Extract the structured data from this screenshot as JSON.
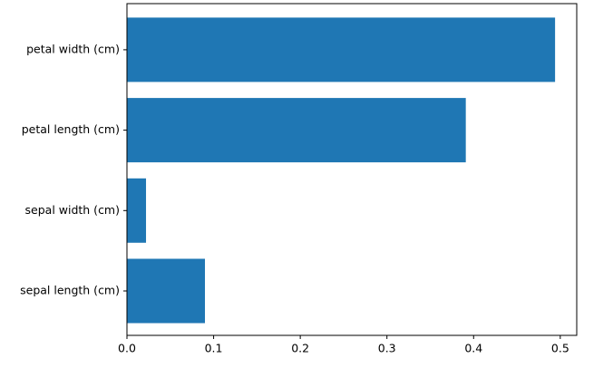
{
  "chart_data": {
    "type": "barh",
    "categories": [
      "sepal length (cm)",
      "sepal width (cm)",
      "petal length (cm)",
      "petal width (cm)"
    ],
    "values": [
      0.09,
      0.022,
      0.391,
      0.494
    ],
    "color": "#1f77b4",
    "xlim": [
      0,
      0.519
    ],
    "xticks": [
      {
        "value": 0,
        "label": "0.0"
      },
      0.1,
      0.2,
      0.3,
      0.4,
      0.5
    ],
    "grid": false
  }
}
